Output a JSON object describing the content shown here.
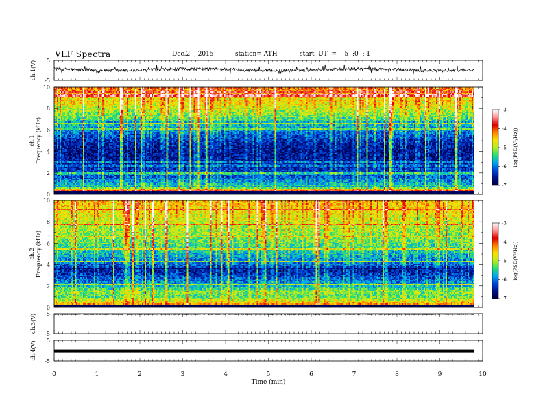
{
  "header": {
    "title": "VLF  Spectra",
    "date": "Dec.2  , 2015",
    "station": "station= ATH",
    "start": "start  UT  =    5  :0  : 1"
  },
  "colors": {
    "colormap": [
      "#000040",
      "#00108c",
      "#0048d8",
      "#00a8f0",
      "#28e070",
      "#b8ec20",
      "#f8e000",
      "#ff8000",
      "#e00000",
      "#ff9090",
      "#ffffff"
    ]
  },
  "chart_data": [
    {
      "type": "line",
      "name": "panel-ch1",
      "ylabel": "ch.1(V)",
      "yticks": [
        "5",
        "-5"
      ],
      "ylim": [
        -5,
        5
      ],
      "note": "noisy trace near +0.5 V with spikes"
    },
    {
      "type": "heatmap",
      "name": "spectrogram-ch1",
      "ylabel": "ch.1\nFrequency  (kHz)",
      "ylabel_lines": [
        "ch.1",
        "Frequency  (kHz)"
      ],
      "yticks": [
        "0",
        "2",
        "4",
        "6",
        "8",
        "10"
      ],
      "ylim": [
        0,
        10
      ],
      "xlim": [
        0,
        10
      ],
      "data_end_min": 9.8,
      "colorbar": {
        "label": "log(PSD(V²/Hz))",
        "ticks": [
          "-3",
          "-4",
          "-5",
          "-6",
          "-7"
        ],
        "range": [
          -7,
          -3
        ]
      },
      "freq_profile_kHz": [
        [
          0.0,
          -3.6
        ],
        [
          0.3,
          -3.8
        ],
        [
          0.6,
          -5.4
        ],
        [
          1.0,
          -5.8
        ],
        [
          1.5,
          -6.2
        ],
        [
          2.0,
          -6.3
        ],
        [
          2.5,
          -6.5
        ],
        [
          3.0,
          -6.6
        ],
        [
          4.0,
          -6.7
        ],
        [
          5.0,
          -6.5
        ],
        [
          6.0,
          -6.0
        ],
        [
          6.5,
          -5.8
        ],
        [
          7.0,
          -5.5
        ],
        [
          8.0,
          -5.0
        ],
        [
          9.0,
          -4.6
        ],
        [
          10.0,
          -4.3
        ]
      ]
    },
    {
      "type": "heatmap",
      "name": "spectrogram-ch2",
      "ylabel_lines": [
        "ch.2",
        "Frequency  (kHz)"
      ],
      "yticks": [
        "0",
        "2",
        "4",
        "6",
        "8",
        "10"
      ],
      "ylim": [
        0,
        10
      ],
      "xlim": [
        0,
        10
      ],
      "data_end_min": 9.8,
      "colorbar": {
        "label": "log(PSD(V²/Hz))",
        "ticks": [
          "-3",
          "-4",
          "-5",
          "-6",
          "-7"
        ],
        "range": [
          -7,
          -3
        ]
      },
      "freq_profile_kHz": [
        [
          0.0,
          -3.8
        ],
        [
          0.4,
          -4.6
        ],
        [
          1.0,
          -5.4
        ],
        [
          1.5,
          -5.2
        ],
        [
          2.0,
          -5.8
        ],
        [
          3.0,
          -6.4
        ],
        [
          3.5,
          -6.6
        ],
        [
          4.0,
          -6.2
        ],
        [
          5.0,
          -5.8
        ],
        [
          6.0,
          -5.4
        ],
        [
          7.0,
          -5.2
        ],
        [
          8.0,
          -5.0
        ],
        [
          9.0,
          -4.8
        ],
        [
          10.0,
          -4.6
        ]
      ]
    },
    {
      "type": "line",
      "name": "panel-ch3",
      "ylabel": "ch.3(V)",
      "yticks": [
        "5",
        "-5"
      ],
      "ylim": [
        -5,
        5
      ],
      "note": "flat trace near +4.6 V"
    },
    {
      "type": "line",
      "name": "panel-ch4",
      "ylabel": "ch.4(V)",
      "yticks": [
        "5",
        "-5"
      ],
      "ylim": [
        -5,
        5
      ],
      "note": "thick flat trace near -0.2 V"
    }
  ],
  "xaxis": {
    "label": "Time  (min)",
    "ticks": [
      "0",
      "1",
      "2",
      "3",
      "4",
      "5",
      "6",
      "7",
      "8",
      "9",
      "10"
    ],
    "range": [
      0,
      10
    ]
  }
}
